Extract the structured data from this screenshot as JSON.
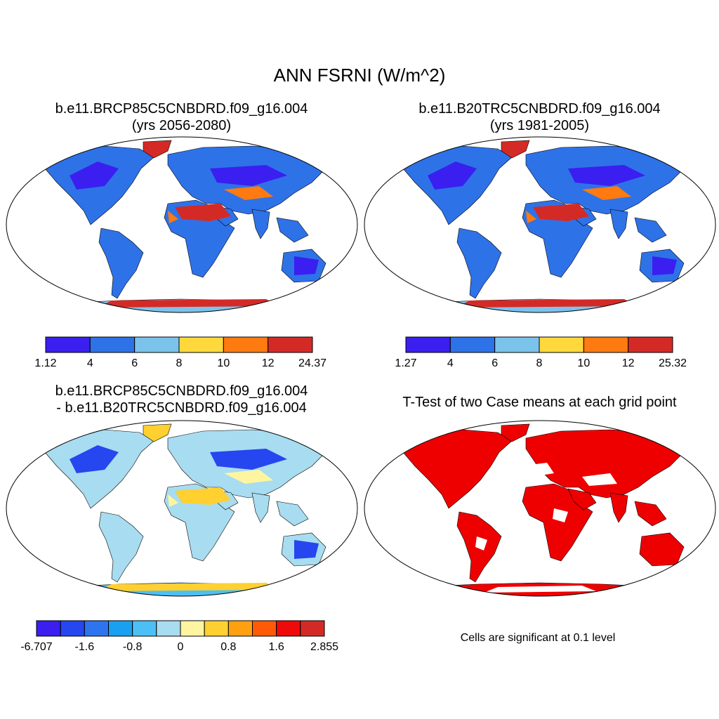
{
  "figure": {
    "title": "ANN FSRNI (W/m^2)"
  },
  "panels": [
    {
      "title_line1": "b.e11.BRCP85C5CNBDRD.f09_g16.004",
      "title_line2": "(yrs 2056-2080)",
      "colorbar": {
        "colors": [
          "#3a1ff0",
          "#2e72e8",
          "#7cc3ec",
          "#ffd83c",
          "#ff7a10",
          "#d42a26"
        ],
        "labels": [
          "1.12",
          "4",
          "6",
          "8",
          "10",
          "12",
          "24.37"
        ]
      }
    },
    {
      "title_line1": "b.e11.B20TRC5CNBDRD.f09_g16.004",
      "title_line2": "(yrs 1981-2005)",
      "colorbar": {
        "colors": [
          "#3a1ff0",
          "#2e72e8",
          "#7cc3ec",
          "#ffd83c",
          "#ff7a10",
          "#d42a26"
        ],
        "labels": [
          "1.27",
          "4",
          "6",
          "8",
          "10",
          "12",
          "25.32"
        ]
      }
    },
    {
      "title_line1": "b.e11.BRCP85C5CNBDRD.f09_g16.004",
      "title_line2": "- b.e11.B20TRC5CNBDRD.f09_g16.004",
      "colorbar": {
        "colors": [
          "#3a1ff0",
          "#2646f0",
          "#2e74ee",
          "#1aa0f0",
          "#4cc0f4",
          "#a8dcf0",
          "#fff5a0",
          "#ffd030",
          "#ffa010",
          "#ff5a08",
          "#ee0a0a",
          "#d42a26"
        ],
        "labels": [
          "-6.707",
          "-1.6",
          "-0.8",
          "0",
          "0.8",
          "1.6",
          "2.855"
        ]
      }
    },
    {
      "title_line1": "T-Test of two Case means at each grid point",
      "note": "Cells are significant at 0.1 level",
      "significant_color": "#ee0000"
    }
  ]
}
